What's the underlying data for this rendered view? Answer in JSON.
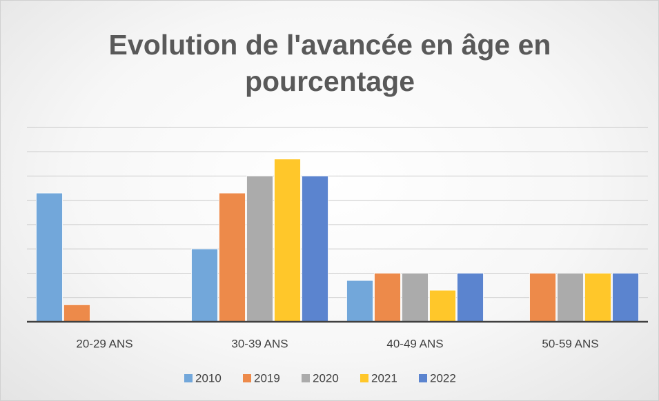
{
  "chart_data": {
    "type": "bar",
    "title": "Evolution de l'avancée en âge en pourcentage",
    "categories": [
      "20-29 ANS",
      "30-39 ANS",
      "40-49 ANS",
      "50-59 ANS"
    ],
    "series": [
      {
        "name": "2010",
        "color": "#72a7da",
        "values": [
          26.5,
          15,
          8.5,
          0
        ]
      },
      {
        "name": "2019",
        "color": "#ed8a4a",
        "values": [
          3.5,
          26.5,
          10,
          10
        ]
      },
      {
        "name": "2020",
        "color": "#ababab",
        "values": [
          0,
          30,
          10,
          10
        ]
      },
      {
        "name": "2021",
        "color": "#ffc72a",
        "values": [
          0,
          33.5,
          6.5,
          10
        ]
      },
      {
        "name": "2022",
        "color": "#5b84cf",
        "values": [
          0,
          30,
          10,
          10
        ]
      }
    ],
    "ylim": [
      0,
      40
    ],
    "yticks": [
      0,
      5,
      10,
      15,
      20,
      25,
      30,
      35,
      40
    ],
    "grid": true,
    "legend": "bottom"
  }
}
